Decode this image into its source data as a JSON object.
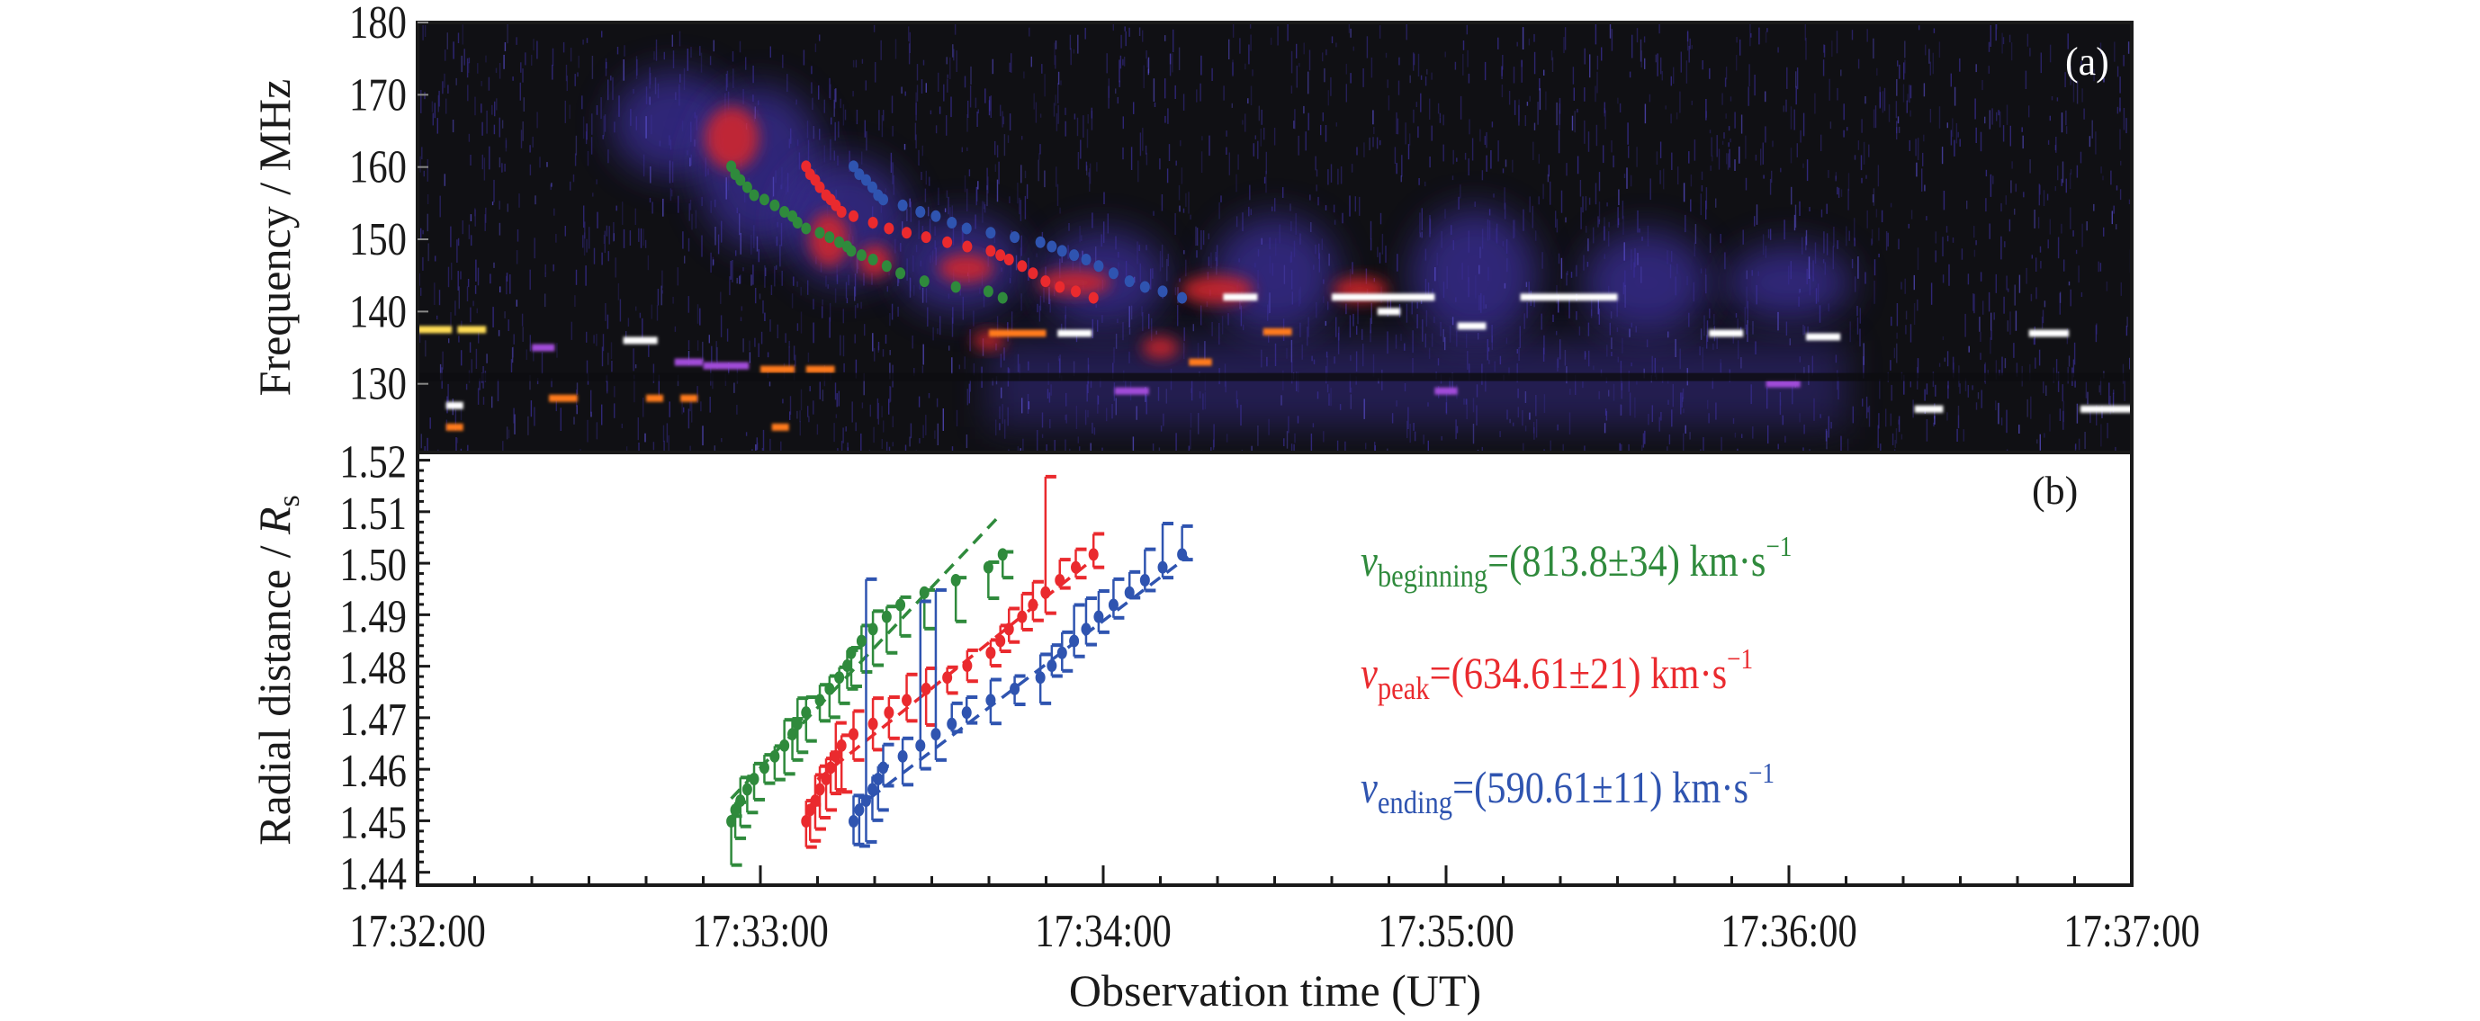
{
  "chart_data": [
    {
      "panel_label": "(a)",
      "type": "heatmap",
      "ylabel": "Frequency / MHz",
      "ylim": [
        120.5,
        180
      ],
      "yticks": [
        "130",
        "140",
        "150",
        "160",
        "170",
        "180"
      ],
      "xlim": [
        "17:32:00",
        "17:37:00"
      ],
      "colormap": [
        "#101014",
        "#3b2f9a",
        "#5a4fd0",
        "#d8262a",
        "#ff8c1a",
        "#ffffff"
      ],
      "tracks": {
        "frequency_MHz": [
          160.1,
          159.0,
          158.2,
          157.2,
          156.1,
          155.5,
          154.7,
          153.8,
          153.2,
          152.3,
          151.5,
          150.9,
          150.3,
          149.6,
          149.0,
          148.4,
          147.8,
          147.2,
          146.3,
          145.3,
          144.2,
          143.4,
          142.8,
          141.9
        ],
        "series": [
          {
            "key": "beginning",
            "color": "#2f8a3c"
          },
          {
            "key": "peak",
            "color": "#ea2a2e"
          },
          {
            "key": "ending",
            "color": "#2f54b0"
          }
        ]
      }
    },
    {
      "panel_label": "(b)",
      "type": "scatter",
      "xlabel": "Observation time (UT)",
      "ylabel": "Radial distance / ",
      "ylabel_symbol": "R",
      "ylabel_subscript": "s",
      "xlim": [
        "17:32:00",
        "17:37:00"
      ],
      "ylim": [
        1.4375,
        1.5208
      ],
      "xticks": [
        "17:32:00",
        "17:33:00",
        "17:34:00",
        "17:35:00",
        "17:36:00",
        "17:37:00"
      ],
      "yticks": [
        "1.44",
        "1.45",
        "1.46",
        "1.47",
        "1.48",
        "1.49",
        "1.50",
        "1.51",
        "1.52"
      ],
      "grid": false,
      "radial_distance_Rs": [
        1.4499,
        1.4521,
        1.4539,
        1.4561,
        1.4581,
        1.4603,
        1.4625,
        1.4646,
        1.4668,
        1.4688,
        1.471,
        1.4734,
        1.4756,
        1.4778,
        1.4801,
        1.4826,
        1.4849,
        1.4872,
        1.4896,
        1.4919,
        1.4943,
        1.4967,
        1.4992,
        1.5017
      ],
      "series": [
        {
          "key": "beginning",
          "color": "#2f8a3c",
          "time": [
            "17:32:54.9",
            "17:32:55.6",
            "17:32:56.5",
            "17:32:57.7",
            "17:32:58.9",
            "17:33:00.7",
            "17:33:02.5",
            "17:33:04.2",
            "17:33:05.6",
            "17:33:06.5",
            "17:33:08.0",
            "17:33:10.4",
            "17:33:12.1",
            "17:33:13.8",
            "17:33:15.2",
            "17:33:15.9",
            "17:33:17.7",
            "17:33:19.7",
            "17:33:22.1",
            "17:33:24.5",
            "17:33:28.7",
            "17:33:34.2",
            "17:33:39.9",
            "17:33:42.4"
          ],
          "err_up": [
            0.001,
            0.0015,
            0.0045,
            0.0025,
            0.003,
            0.0025,
            0.002,
            0.005,
            0.003,
            0.005,
            0.003,
            0.003,
            0.0025,
            0.002,
            0.003,
            0.001,
            0.003,
            0.0035,
            0.002,
            0.0015,
            0.0005,
            0.0005,
            0.001,
            0.0005
          ],
          "err_down": [
            0.0085,
            0.0055,
            0.005,
            0.0045,
            0.004,
            0.003,
            0.0045,
            0.0055,
            0.005,
            0.0055,
            0.0055,
            0.004,
            0.0055,
            0.005,
            0.0045,
            0.0065,
            0.006,
            0.007,
            0.007,
            0.006,
            0.007,
            0.008,
            0.006,
            0.0045
          ],
          "fit": {
            "time": [
              "17:32:54.9",
              "17:33:42.0"
            ],
            "r": [
              1.4543,
              1.5094
            ]
          },
          "label_symbol": "v",
          "label_subscript": "beginning",
          "label_value": "=(813.8±34) km·s",
          "label_exponent": "−1"
        },
        {
          "key": "peak",
          "color": "#ea2a2e",
          "time": [
            "17:33:08.0",
            "17:33:08.7",
            "17:33:09.6",
            "17:33:10.4",
            "17:33:11.5",
            "17:33:12.3",
            "17:33:13.2",
            "17:33:14.2",
            "17:33:16.3",
            "17:33:19.7",
            "17:33:22.5",
            "17:33:25.6",
            "17:33:29.0",
            "17:33:32.7",
            "17:33:36.2",
            "17:33:40.3",
            "17:33:42.0",
            "17:33:43.5",
            "17:33:45.8",
            "17:33:47.7",
            "17:33:49.9",
            "17:33:52.4",
            "17:33:55.2",
            "17:33:58.3"
          ],
          "err_up": [
            0.004,
            0.001,
            0.005,
            0.0045,
            0.004,
            0.003,
            0.0065,
            0.002,
            0.0045,
            0.005,
            0.003,
            0.005,
            0.004,
            0.002,
            0.003,
            0.0025,
            0.003,
            0.004,
            0.0045,
            0.0045,
            0.0225,
            0.004,
            0.0035,
            0.004
          ],
          "err_down": [
            0.005,
            0.006,
            0.0055,
            0.0055,
            0.006,
            0.005,
            0.0065,
            0.009,
            0.005,
            0.005,
            0.005,
            0.004,
            0.007,
            0.003,
            0.003,
            0.0025,
            0.002,
            0.0025,
            0.0025,
            0.003,
            0.004,
            0.0015,
            0.002,
            0.0025
          ],
          "fit": {
            "time": [
              "17:33:10.0",
              "17:33:58.5"
            ],
            "r": [
              1.458,
              1.501
            ]
          },
          "label_symbol": "v",
          "label_subscript": "peak",
          "label_value": "=(634.61±21) km·s",
          "label_exponent": "−1"
        },
        {
          "key": "ending",
          "color": "#2f54b0",
          "time": [
            "17:33:16.3",
            "17:33:17.3",
            "17:33:18.5",
            "17:33:19.6",
            "17:33:20.6",
            "17:33:21.5",
            "17:33:24.9",
            "17:33:28.0",
            "17:33:30.7",
            "17:33:33.5",
            "17:33:36.1",
            "17:33:40.3",
            "17:33:44.5",
            "17:33:49.0",
            "17:33:51.0",
            "17:33:52.8",
            "17:33:54.9",
            "17:33:57.0",
            "17:33:59.2",
            "17:34:01.8",
            "17:34:04.6",
            "17:34:07.3",
            "17:34:10.4",
            "17:34:13.8"
          ],
          "err_up": [
            0.005,
            0.0025,
            0.043,
            0.0025,
            0.0025,
            0.0045,
            0.0035,
            0.028,
            0.028,
            0.004,
            0.003,
            0.004,
            0.0025,
            0.0045,
            0.004,
            0.004,
            0.007,
            0.006,
            0.005,
            0.005,
            0.004,
            0.006,
            0.0085,
            0.0055
          ],
          "err_down": [
            0.0045,
            0.007,
            0.008,
            0.006,
            0.006,
            0.0035,
            0.0055,
            0.0045,
            0.005,
            0.0015,
            0.002,
            0.0045,
            0.003,
            0.005,
            0.002,
            0.0035,
            0.003,
            0.003,
            0.003,
            0.0025,
            0.001,
            0.002,
            0.002,
            0.001
          ],
          "fit": {
            "time": [
              "17:33:16.3",
              "17:34:14.8"
            ],
            "r": [
              1.452,
              1.5013
            ]
          },
          "label_symbol": "v",
          "label_subscript": "ending",
          "label_value": "=(590.61±11) km·s",
          "label_exponent": "−1"
        }
      ]
    }
  ]
}
